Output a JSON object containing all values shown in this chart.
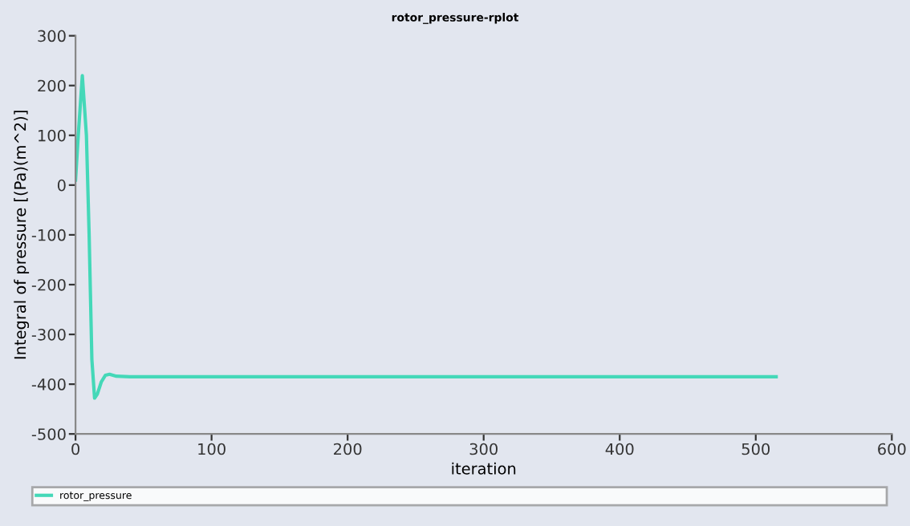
{
  "chart_data": {
    "type": "line",
    "title": "rotor_pressure-rplot",
    "xlabel": "iteration",
    "ylabel": "Integral of pressure [(Pa)(m^2)]",
    "series": [
      {
        "name": "rotor_pressure",
        "color": "#44d8b8",
        "x": [
          0,
          2,
          5,
          8,
          10,
          12,
          14,
          16,
          19,
          22,
          25,
          30,
          40,
          60,
          100,
          200,
          300,
          400,
          515
        ],
        "values": [
          10,
          100,
          220,
          100,
          -100,
          -350,
          -428,
          -420,
          -395,
          -382,
          -380,
          -384,
          -385,
          -385,
          -385,
          -385,
          -385,
          -385,
          -385
        ]
      }
    ],
    "xlim": [
      0,
      600
    ],
    "xticks": [
      0,
      100,
      200,
      300,
      400,
      500,
      600
    ],
    "ylim": [
      -500,
      300
    ],
    "yticks": [
      -500,
      -400,
      -300,
      -200,
      -100,
      0,
      100,
      200,
      300
    ],
    "grid": false,
    "legend": "bottom",
    "marker": "none",
    "line_style": "solid"
  }
}
